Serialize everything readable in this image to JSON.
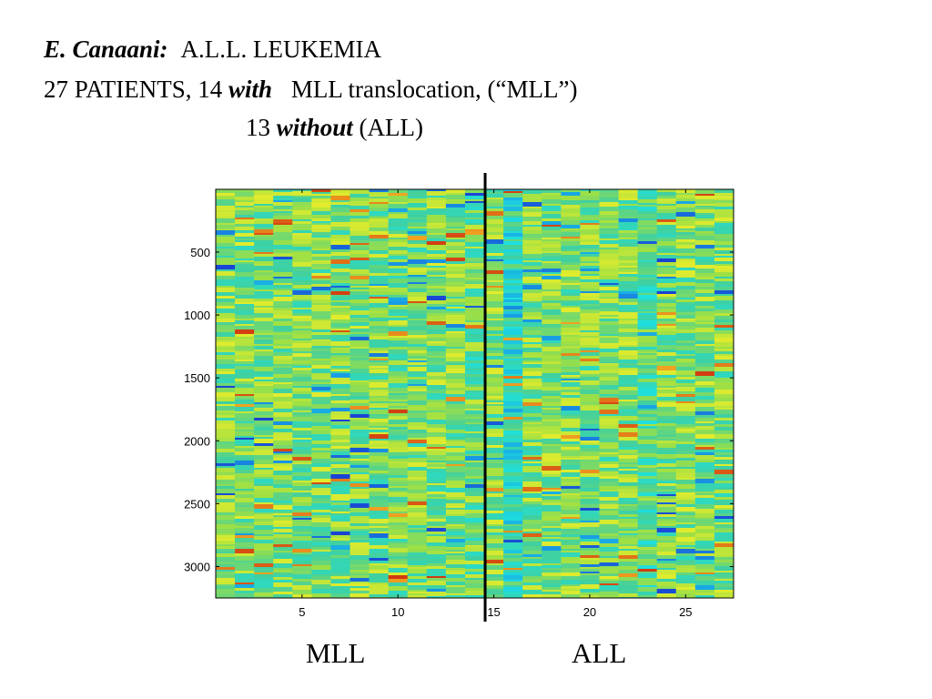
{
  "slide": {
    "line1": {
      "author": "E. Canaani:",
      "rest": "A.L.L. LEUKEMIA"
    },
    "line2": {
      "prefix": "27 PATIENTS, 14",
      "emph": "with",
      "suffix": "MLL translocation, (“MLL”)"
    },
    "line3": {
      "prefix": "13",
      "emph": "without",
      "suffix": "(ALL)"
    }
  },
  "chart_data": {
    "type": "heatmap",
    "title": "",
    "xlabel": "",
    "ylabel": "",
    "n_patients": 27,
    "n_genes": 3250,
    "x_ticks": [
      5,
      10,
      15,
      20,
      25
    ],
    "y_ticks": [
      500,
      1000,
      1500,
      2000,
      2500,
      3000
    ],
    "xlim": [
      0.5,
      27.5
    ],
    "ylim": [
      1,
      3250
    ],
    "y_reversed": true,
    "split_after_patient": 14,
    "groups": [
      {
        "label": "MLL",
        "patients": [
          1,
          14
        ]
      },
      {
        "label": "ALL",
        "patients": [
          15,
          27
        ]
      }
    ],
    "colormap": [
      "#1a2fd0",
      "#18a4e6",
      "#1fe0dc",
      "#40d0a0",
      "#9ee045",
      "#f0ee28",
      "#f0a020",
      "#d03810"
    ],
    "divider_color": "#000000"
  }
}
